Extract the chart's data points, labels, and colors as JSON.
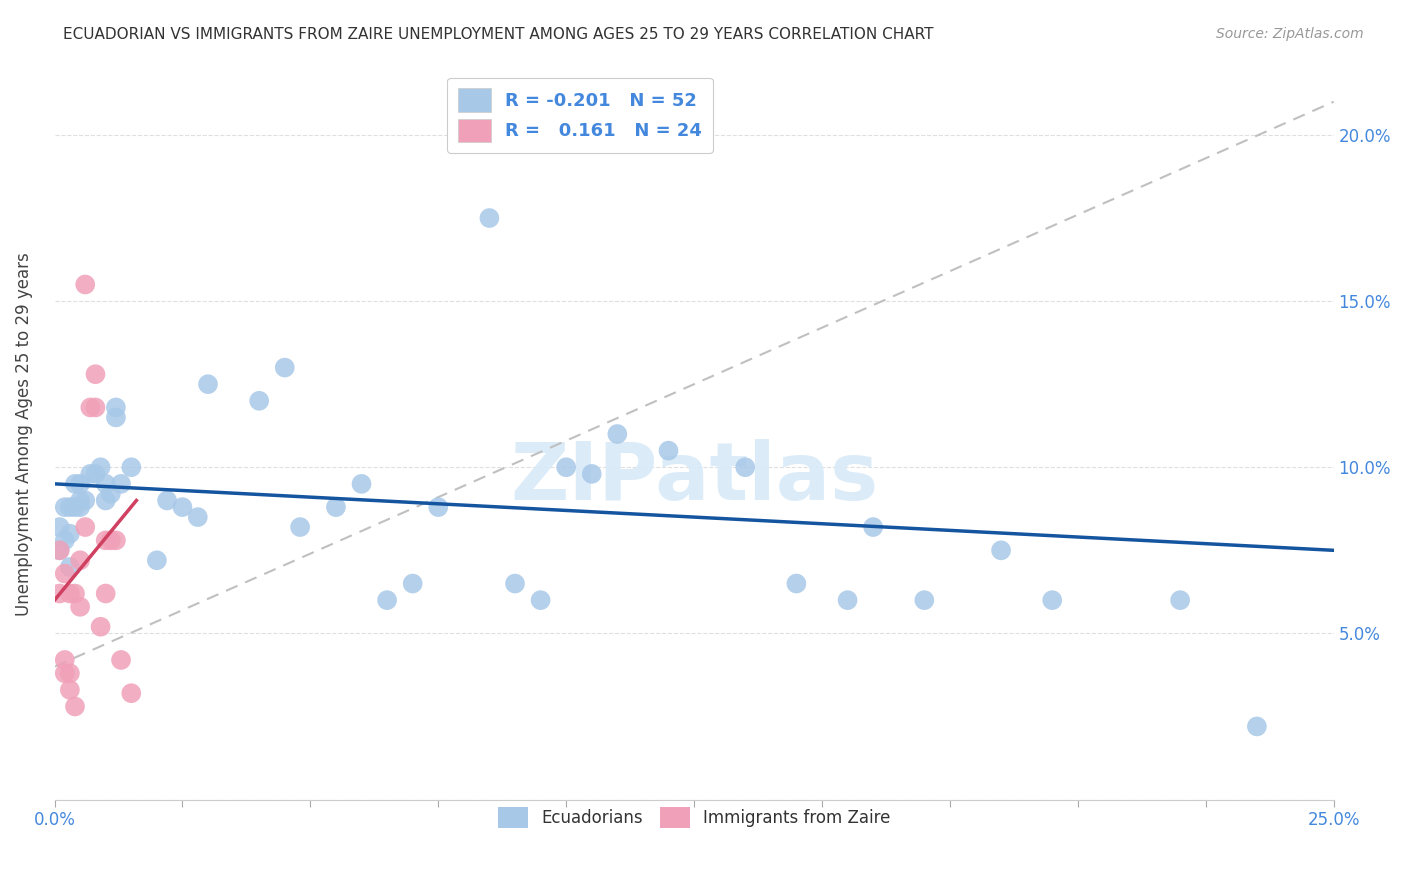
{
  "title": "ECUADORIAN VS IMMIGRANTS FROM ZAIRE UNEMPLOYMENT AMONG AGES 25 TO 29 YEARS CORRELATION CHART",
  "source": "Source: ZipAtlas.com",
  "ylabel": "Unemployment Among Ages 25 to 29 years",
  "xlim": [
    0,
    0.25
  ],
  "ylim": [
    0,
    0.22
  ],
  "x_ticks": [
    0.0,
    0.025,
    0.05,
    0.075,
    0.1,
    0.125,
    0.15,
    0.175,
    0.2,
    0.225,
    0.25
  ],
  "x_tick_labels_show": [
    "0.0%",
    "",
    "",
    "",
    "",
    "",
    "",
    "",
    "",
    "",
    "25.0%"
  ],
  "y_ticks": [
    0.0,
    0.05,
    0.1,
    0.15,
    0.2
  ],
  "y_tick_labels_right": [
    "",
    "5.0%",
    "10.0%",
    "15.0%",
    "20.0%"
  ],
  "legend_R1": "-0.201",
  "legend_N1": "52",
  "legend_R2": "0.161",
  "legend_N2": "24",
  "blue_color": "#a8c8e8",
  "pink_color": "#f0a0b8",
  "trend_blue": "#1555a0",
  "trend_pink": "#d04060",
  "trend_dashed_color": "#c0c0c0",
  "legend_text_color": "#4488dd",
  "tick_color": "#4488dd",
  "watermark": "ZIPatlas",
  "watermark_color": "#d8eaf8",
  "background_color": "#ffffff",
  "grid_color": "#d8d8d8",
  "ecuadorians_x": [
    0.001,
    0.001,
    0.002,
    0.002,
    0.003,
    0.003,
    0.003,
    0.004,
    0.004,
    0.005,
    0.005,
    0.005,
    0.006,
    0.007,
    0.008,
    0.009,
    0.01,
    0.01,
    0.011,
    0.012,
    0.012,
    0.013,
    0.015,
    0.02,
    0.022,
    0.025,
    0.028,
    0.03,
    0.04,
    0.045,
    0.048,
    0.055,
    0.06,
    0.065,
    0.07,
    0.075,
    0.085,
    0.09,
    0.095,
    0.1,
    0.105,
    0.11,
    0.12,
    0.135,
    0.145,
    0.155,
    0.16,
    0.17,
    0.185,
    0.195,
    0.22,
    0.235
  ],
  "ecuadorians_y": [
    0.075,
    0.082,
    0.078,
    0.088,
    0.07,
    0.08,
    0.088,
    0.088,
    0.095,
    0.088,
    0.09,
    0.095,
    0.09,
    0.098,
    0.098,
    0.1,
    0.095,
    0.09,
    0.092,
    0.118,
    0.115,
    0.095,
    0.1,
    0.072,
    0.09,
    0.088,
    0.085,
    0.125,
    0.12,
    0.13,
    0.082,
    0.088,
    0.095,
    0.06,
    0.065,
    0.088,
    0.175,
    0.065,
    0.06,
    0.1,
    0.098,
    0.11,
    0.105,
    0.1,
    0.065,
    0.06,
    0.082,
    0.06,
    0.075,
    0.06,
    0.06,
    0.022
  ],
  "zaire_x": [
    0.001,
    0.001,
    0.002,
    0.002,
    0.002,
    0.003,
    0.003,
    0.003,
    0.004,
    0.004,
    0.005,
    0.005,
    0.006,
    0.006,
    0.007,
    0.008,
    0.008,
    0.009,
    0.01,
    0.01,
    0.011,
    0.012,
    0.013,
    0.015
  ],
  "zaire_y": [
    0.075,
    0.062,
    0.038,
    0.042,
    0.068,
    0.033,
    0.038,
    0.062,
    0.028,
    0.062,
    0.058,
    0.072,
    0.155,
    0.082,
    0.118,
    0.118,
    0.128,
    0.052,
    0.078,
    0.062,
    0.078,
    0.078,
    0.042,
    0.032
  ],
  "blue_trend_x": [
    0.0,
    0.25
  ],
  "blue_trend_y": [
    0.095,
    0.075
  ],
  "pink_trend_x": [
    0.0,
    0.016
  ],
  "pink_trend_y": [
    0.06,
    0.09
  ],
  "dash_trend_x": [
    0.0,
    0.25
  ],
  "dash_trend_y": [
    0.04,
    0.21
  ]
}
